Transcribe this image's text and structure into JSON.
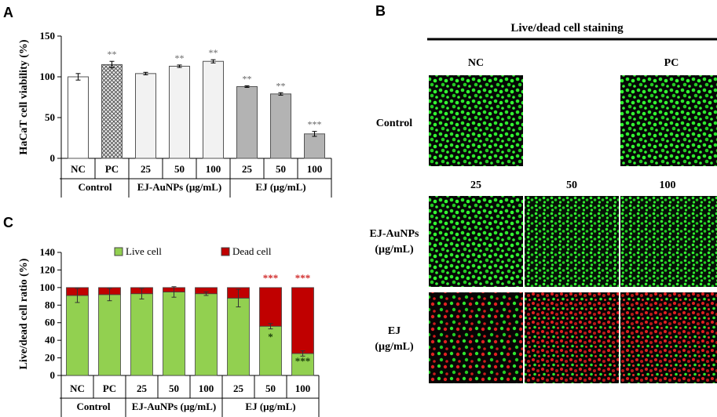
{
  "panels": {
    "a": "A",
    "b": "B",
    "c": "C"
  },
  "chart_data": [
    {
      "type": "bar",
      "panel": "A",
      "ylabel": "HaCaT cell viability (%)",
      "ylim": [
        0,
        150
      ],
      "yticks": [
        0,
        50,
        100,
        150
      ],
      "categories": [
        "NC",
        "PC",
        "25",
        "50",
        "100",
        "25",
        "50",
        "100"
      ],
      "groups": [
        {
          "label": "Control",
          "span": 2
        },
        {
          "label": "EJ-AuNPs (µg/mL)",
          "span": 3
        },
        {
          "label": "EJ (µg/mL)",
          "span": 3
        }
      ],
      "values": [
        100,
        115,
        104,
        113,
        119,
        88,
        79,
        30
      ],
      "errors": [
        4,
        4,
        1.5,
        1.5,
        2,
        1,
        1.5,
        3
      ],
      "significance": [
        "",
        "**",
        "",
        "**",
        "**",
        "**",
        "**",
        "***"
      ],
      "colors": {
        "control_nc": "#ffffff",
        "pc_pattern": "crosshatch",
        "auNP": "#f2f2f2",
        "ej": "#b3b3b3"
      }
    },
    {
      "type": "bar",
      "stacked": true,
      "panel": "C",
      "ylabel": "Live/dead cell ratio (%)",
      "ylim": [
        0,
        140
      ],
      "yticks": [
        0,
        20,
        40,
        60,
        80,
        100,
        120,
        140
      ],
      "categories": [
        "NC",
        "PC",
        "25",
        "50",
        "100",
        "25",
        "50",
        "100"
      ],
      "groups": [
        {
          "label": "Control",
          "span": 2
        },
        {
          "label": "EJ-AuNPs (µg/mL)",
          "span": 3
        },
        {
          "label": "EJ (µg/mL)",
          "span": 3
        }
      ],
      "series": [
        {
          "name": "Live cell",
          "color": "#92d050",
          "values": [
            91,
            92,
            93,
            95,
            93,
            88,
            56,
            25
          ],
          "errors": [
            8,
            7,
            6,
            6,
            2,
            10,
            3,
            3
          ],
          "significance": [
            "",
            "",
            "",
            "",
            "",
            "",
            "*",
            "***"
          ]
        },
        {
          "name": "Dead cell",
          "color": "#c00000",
          "values": [
            9,
            8,
            7,
            5,
            7,
            12,
            44,
            75
          ],
          "significance": [
            "",
            "",
            "",
            "",
            "",
            "",
            "***",
            "***"
          ]
        }
      ],
      "legend_position": "top"
    }
  ],
  "panel_b": {
    "title": "Live/dead cell staining",
    "col_labels_top": [
      "NC",
      "PC"
    ],
    "col_labels_conc": [
      "25",
      "50",
      "100"
    ],
    "row_labels": [
      {
        "line1": "Control",
        "line2": ""
      },
      {
        "line1": "EJ-AuNPs",
        "line2": "(µg/mL)"
      },
      {
        "line1": "EJ",
        "line2": "(µg/mL)"
      }
    ]
  }
}
